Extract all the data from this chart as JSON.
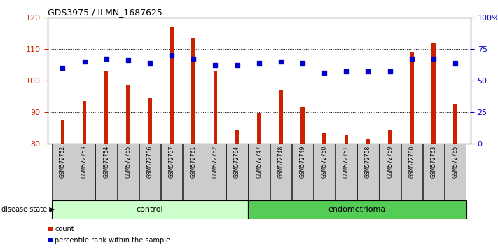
{
  "title": "GDS3975 / ILMN_1687625",
  "samples": [
    "GSM572752",
    "GSM572753",
    "GSM572754",
    "GSM572755",
    "GSM572756",
    "GSM572757",
    "GSM572761",
    "GSM572762",
    "GSM572764",
    "GSM572747",
    "GSM572748",
    "GSM572749",
    "GSM572750",
    "GSM572751",
    "GSM572758",
    "GSM572759",
    "GSM572760",
    "GSM572763",
    "GSM572765"
  ],
  "counts": [
    87.5,
    93.5,
    103.0,
    98.5,
    94.5,
    117.0,
    113.5,
    103.0,
    84.5,
    89.5,
    97.0,
    91.5,
    83.5,
    83.0,
    81.5,
    84.5,
    109.0,
    112.0,
    92.5
  ],
  "percentiles": [
    60,
    65,
    67,
    66,
    64,
    70,
    67,
    62,
    62,
    64,
    65,
    64,
    56,
    57,
    57,
    57,
    67,
    67,
    64
  ],
  "control_count": 9,
  "endometrioma_count": 10,
  "bar_color": "#cc2200",
  "dot_color": "#0000cc",
  "control_label": "control",
  "endometrioma_label": "endometrioma",
  "disease_state_label": "disease state",
  "legend_count_label": "count",
  "legend_percentile_label": "percentile rank within the sample",
  "ylim_left": [
    80,
    120
  ],
  "yticks_left": [
    80,
    90,
    100,
    110,
    120
  ],
  "ylim_right": [
    0,
    100
  ],
  "yticks_right": [
    0,
    25,
    50,
    75,
    100
  ],
  "ytick_labels_right": [
    "0",
    "25",
    "50",
    "75",
    "100%"
  ],
  "control_bg": "#ccffcc",
  "endometrioma_bg": "#55cc55",
  "sample_bg": "#cccccc",
  "bar_width": 0.18
}
